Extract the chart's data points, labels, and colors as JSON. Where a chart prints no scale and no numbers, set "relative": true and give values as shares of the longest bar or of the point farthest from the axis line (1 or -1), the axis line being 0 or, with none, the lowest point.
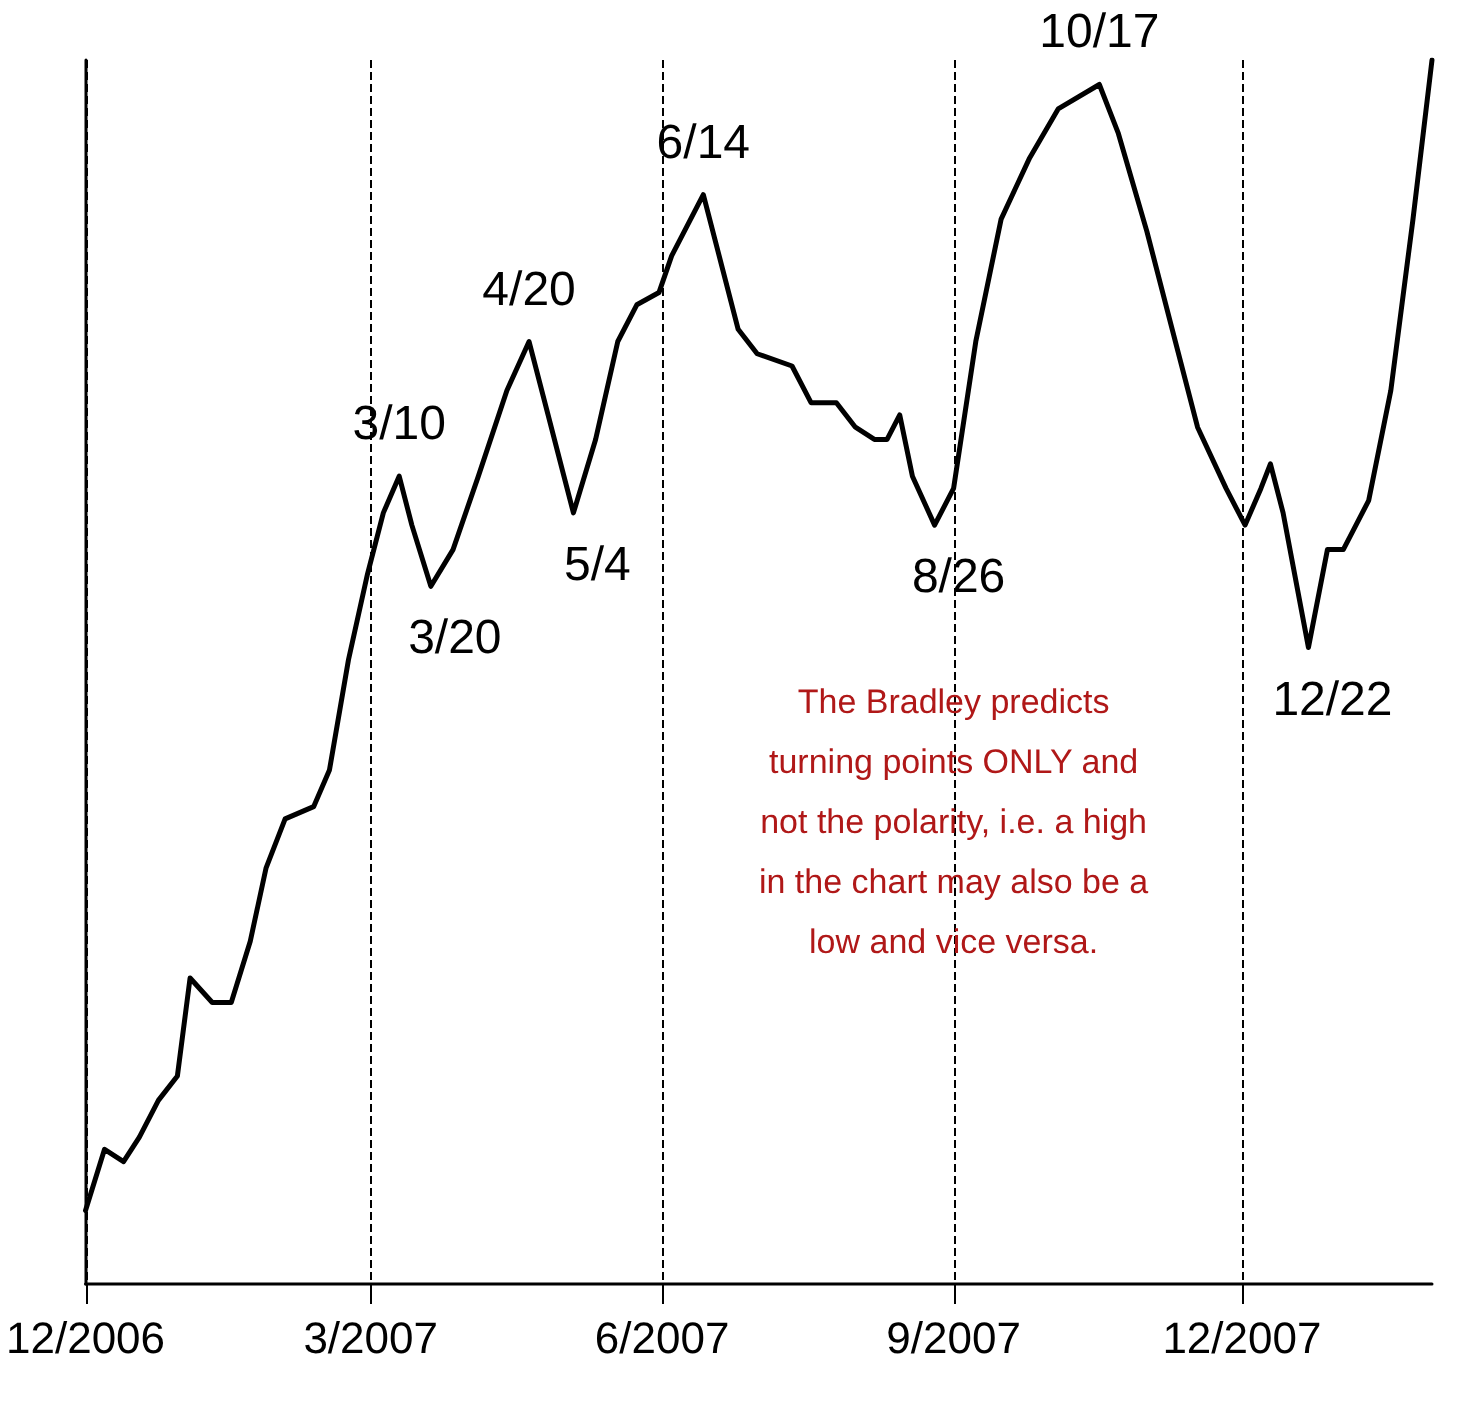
{
  "chart_data": {
    "type": "line",
    "relative": true,
    "color": "#000000",
    "line_style": "solid",
    "marker": "none",
    "grid": "x",
    "x": [
      "2006-12-01",
      "2006-12-07",
      "2006-12-13",
      "2006-12-18",
      "2006-12-24",
      "2006-12-30",
      "2007-01-03",
      "2007-01-10",
      "2007-01-16",
      "2007-01-22",
      "2007-01-27",
      "2007-02-02",
      "2007-02-11",
      "2007-02-16",
      "2007-02-22",
      "2007-02-28",
      "2007-03-05",
      "2007-03-10",
      "2007-03-14",
      "2007-03-20",
      "2007-03-27",
      "2007-04-04",
      "2007-04-13",
      "2007-04-20",
      "2007-04-26",
      "2007-05-01",
      "2007-05-04",
      "2007-05-11",
      "2007-05-18",
      "2007-05-24",
      "2007-05-31",
      "2007-06-04",
      "2007-06-14",
      "2007-06-20",
      "2007-06-25",
      "2007-07-01",
      "2007-07-12",
      "2007-07-18",
      "2007-07-26",
      "2007-08-01",
      "2007-08-07",
      "2007-08-11",
      "2007-08-15",
      "2007-08-19",
      "2007-08-26",
      "2007-09-01",
      "2007-09-08",
      "2007-09-16",
      "2007-09-25",
      "2007-10-04",
      "2007-10-17",
      "2007-10-23",
      "2007-11-01",
      "2007-11-09",
      "2007-11-17",
      "2007-11-26",
      "2007-12-02",
      "2007-12-07",
      "2007-12-10",
      "2007-12-14",
      "2007-12-22",
      "2007-12-28",
      "2008-01-02",
      "2008-01-10",
      "2008-01-17",
      "2008-01-24",
      "2008-01-30"
    ],
    "values": [
      0.06,
      0.11,
      0.1,
      0.12,
      0.15,
      0.17,
      0.25,
      0.23,
      0.23,
      0.28,
      0.34,
      0.38,
      0.39,
      0.42,
      0.51,
      0.58,
      0.63,
      0.66,
      0.62,
      0.57,
      0.6,
      0.66,
      0.73,
      0.77,
      0.71,
      0.66,
      0.63,
      0.69,
      0.77,
      0.8,
      0.81,
      0.84,
      0.89,
      0.83,
      0.78,
      0.76,
      0.75,
      0.72,
      0.72,
      0.7,
      0.69,
      0.69,
      0.71,
      0.66,
      0.62,
      0.65,
      0.77,
      0.87,
      0.92,
      0.96,
      0.98,
      0.94,
      0.86,
      0.78,
      0.7,
      0.65,
      0.62,
      0.65,
      0.67,
      0.63,
      0.52,
      0.6,
      0.6,
      0.64,
      0.73,
      0.87,
      1
    ],
    "xlim": [
      "2006-12-01",
      "2008-01-30"
    ],
    "xticks": [
      {
        "value": "2006-12-01",
        "label": "12/2006"
      },
      {
        "value": "2007-03-01",
        "label": "3/2007"
      },
      {
        "value": "2007-06-01",
        "label": "6/2007"
      },
      {
        "value": "2007-09-01",
        "label": "9/2007"
      },
      {
        "value": "2007-12-01",
        "label": "12/2007"
      }
    ],
    "annotations": [
      {
        "text": "3/10",
        "x": "2007-03-10",
        "y": 0.66
      },
      {
        "text": "3/20",
        "x": "2007-03-20",
        "y": 0.57
      },
      {
        "text": "4/20",
        "x": "2007-04-20",
        "y": 0.77
      },
      {
        "text": "5/4",
        "x": "2007-05-04",
        "y": 0.63
      },
      {
        "text": "6/14",
        "x": "2007-06-14",
        "y": 0.89
      },
      {
        "text": "8/26",
        "x": "2007-08-26",
        "y": 0.62
      },
      {
        "text": "10/17",
        "x": "2007-10-17",
        "y": 0.98
      },
      {
        "text": "12/22",
        "x": "2007-12-22",
        "y": 0.52
      },
      "The Bradley predicts\nturning points ONLY and\nnot the polarity, i.e. a high\nin the chart may also be a\nlow and vice versa."
    ]
  }
}
